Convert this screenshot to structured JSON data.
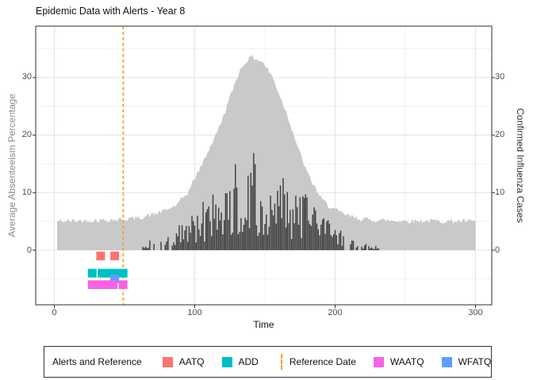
{
  "title": "Epidemic Data with Alerts - Year 8",
  "colors": {
    "area": "#C9C9C9",
    "bars": "#3B3B3B",
    "reference": "#F2A118",
    "grid_major": "#E3E3E3",
    "grid_minor": "#F1F1F1",
    "panel_border": "#2E2E2E",
    "tick_text": "#4D4D4D",
    "axis_label_left": "#8C8C8C",
    "axis_label_right": "#333333",
    "legend_border": "#333333"
  },
  "legend": {
    "title": "Alerts and Reference",
    "items": [
      {
        "label": "AATQ",
        "type": "square",
        "color": "#F8766D"
      },
      {
        "label": "ADD",
        "type": "square",
        "color": "#00BFC4"
      },
      {
        "label": "Reference Date",
        "type": "dashed-line",
        "color": "#F2A118"
      },
      {
        "label": "WAATQ",
        "type": "square",
        "color": "#F564E2"
      },
      {
        "label": "WFATQ",
        "type": "square",
        "color": "#619CFF"
      }
    ]
  },
  "chart_data": {
    "type": "area+bar+scatter",
    "title": "Epidemic Data with Alerts - Year 8",
    "xlabel": "Time",
    "ylabel_left": "Average Absenteeism Percentage",
    "ylabel_right": "Confirmed Influenza Cases",
    "xlim": [
      -13,
      312
    ],
    "ylim": [
      -9.5,
      39
    ],
    "x_major_ticks": [
      0,
      100,
      200,
      300
    ],
    "x_minor_ticks": [
      50,
      150,
      250
    ],
    "y_major_ticks": [
      0,
      10,
      20,
      30
    ],
    "y_minor_ticks": [
      -5,
      5,
      15,
      25,
      35
    ],
    "grid": true,
    "legend_position": "bottom",
    "reference_date": 49,
    "series": [
      {
        "name": "Average Absenteeism Percentage",
        "type": "area",
        "axis": "left",
        "color": "#C9C9C9",
        "x_start": 2,
        "x_end": 300,
        "noise_amplitude": 0.45,
        "seed": 42,
        "keypoints": [
          [
            2,
            5
          ],
          [
            15,
            5.1
          ],
          [
            30,
            5.2
          ],
          [
            45,
            5.3
          ],
          [
            60,
            5.6
          ],
          [
            70,
            6.2
          ],
          [
            80,
            7
          ],
          [
            88,
            8
          ],
          [
            95,
            10
          ],
          [
            100,
            12.5
          ],
          [
            105,
            14.8
          ],
          [
            110,
            17.5
          ],
          [
            115,
            20
          ],
          [
            120,
            23
          ],
          [
            125,
            26.5
          ],
          [
            130,
            30
          ],
          [
            134,
            32
          ],
          [
            138,
            33.2
          ],
          [
            141,
            33.6
          ],
          [
            144,
            33.2
          ],
          [
            148,
            32.8
          ],
          [
            151,
            31.8
          ],
          [
            155,
            30.3
          ],
          [
            158,
            28.5
          ],
          [
            162,
            26
          ],
          [
            166,
            23.5
          ],
          [
            170,
            20.5
          ],
          [
            174,
            17.5
          ],
          [
            178,
            14.8
          ],
          [
            182,
            12.5
          ],
          [
            186,
            10.8
          ],
          [
            190,
            9
          ],
          [
            195,
            7.8
          ],
          [
            200,
            7
          ],
          [
            205,
            6.4
          ],
          [
            210,
            5.9
          ],
          [
            215,
            5.6
          ],
          [
            220,
            5.4
          ],
          [
            230,
            5.2
          ],
          [
            250,
            5.1
          ],
          [
            270,
            5.1
          ],
          [
            300,
            5
          ]
        ]
      },
      {
        "name": "Confirmed Influenza Cases",
        "type": "bar",
        "axis": "right",
        "color": "#3B3B3B",
        "x_start": 62,
        "x_end": 232,
        "seed": 1337,
        "envelope": [
          [
            62,
            0.6
          ],
          [
            66,
            1.2
          ],
          [
            70,
            2.2
          ],
          [
            74,
            2.6
          ],
          [
            78,
            2.2
          ],
          [
            82,
            2.8
          ],
          [
            86,
            3.5
          ],
          [
            90,
            5
          ],
          [
            94,
            5.5
          ],
          [
            98,
            7
          ],
          [
            102,
            9
          ],
          [
            106,
            8.5
          ],
          [
            110,
            10.5
          ],
          [
            114,
            11.5
          ],
          [
            118,
            15.2
          ],
          [
            121,
            10.5
          ],
          [
            124,
            12
          ],
          [
            127,
            13.5
          ],
          [
            130,
            17.5
          ],
          [
            133,
            15
          ],
          [
            136,
            13.5
          ],
          [
            139,
            16
          ],
          [
            142,
            17.8
          ],
          [
            145,
            15.5
          ],
          [
            148,
            17.5
          ],
          [
            151,
            14.5
          ],
          [
            154,
            13.8
          ],
          [
            157,
            15.2
          ],
          [
            160,
            13.5
          ],
          [
            164,
            12.5
          ],
          [
            168,
            11
          ],
          [
            172,
            10
          ],
          [
            176,
            9.2
          ],
          [
            180,
            10.2
          ],
          [
            184,
            8.5
          ],
          [
            188,
            7.5
          ],
          [
            192,
            6
          ],
          [
            196,
            5
          ],
          [
            200,
            4.2
          ],
          [
            205,
            3.2
          ],
          [
            210,
            2.2
          ],
          [
            215,
            1.6
          ],
          [
            220,
            1.2
          ],
          [
            226,
            0.9
          ],
          [
            232,
            0.8
          ]
        ]
      }
    ],
    "alerts": [
      {
        "name": "AATQ",
        "color": "#F8766D",
        "row_y": -1,
        "segments": [
          [
            33,
            33
          ],
          [
            43,
            43
          ]
        ]
      },
      {
        "name": "ADD",
        "color": "#00BFC4",
        "row_y": -4,
        "segments": [
          [
            27,
            27
          ],
          [
            34,
            49
          ]
        ]
      },
      {
        "name": "WFATQ",
        "color": "#619CFF",
        "row_y": -5,
        "segments": [
          [
            43,
            43
          ]
        ]
      },
      {
        "name": "WAATQ",
        "color": "#F564E2",
        "row_y": -6,
        "segments": [
          [
            27,
            27
          ],
          [
            33,
            42
          ],
          [
            49,
            49
          ]
        ]
      }
    ]
  }
}
